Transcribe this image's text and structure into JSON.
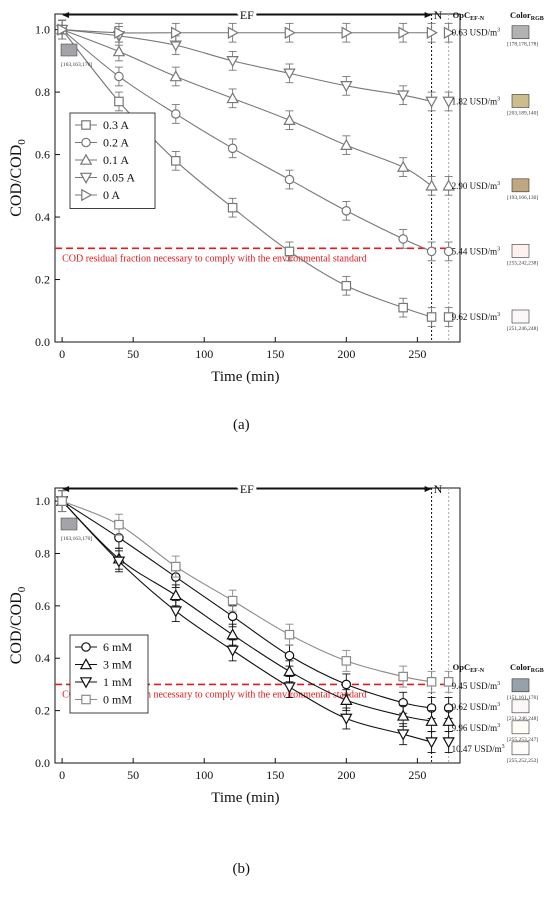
{
  "chart_data": [
    {
      "panel": "a",
      "type": "line",
      "caption": "(a)",
      "xlabel": "Time (min)",
      "ylabel": "COD/COD",
      "ylabel_sub": "0",
      "xlim": [
        -5,
        280
      ],
      "ylim": [
        0,
        1.05
      ],
      "xticks": [
        "0",
        "50",
        "100",
        "150",
        "200",
        "250"
      ],
      "yticks": [
        "0.0",
        "0.2",
        "0.4",
        "0.6",
        "0.8",
        "1.0"
      ],
      "x": [
        0,
        40,
        80,
        120,
        160,
        200,
        240,
        260,
        272
      ],
      "series": [
        {
          "name": "0.3 A",
          "marker": "square",
          "color": "#777777",
          "values": [
            1.0,
            0.77,
            0.58,
            0.43,
            0.29,
            0.18,
            0.11,
            0.08,
            0.08
          ]
        },
        {
          "name": "0.2 A",
          "marker": "circle",
          "color": "#777777",
          "values": [
            1.0,
            0.85,
            0.73,
            0.62,
            0.52,
            0.42,
            0.33,
            0.29,
            0.29
          ]
        },
        {
          "name": "0.1 A",
          "marker": "triangle-up",
          "color": "#777777",
          "values": [
            1.0,
            0.93,
            0.85,
            0.78,
            0.71,
            0.63,
            0.56,
            0.5,
            0.5
          ]
        },
        {
          "name": "0.05 A",
          "marker": "triangle-down",
          "color": "#777777",
          "values": [
            1.0,
            0.98,
            0.95,
            0.9,
            0.86,
            0.82,
            0.79,
            0.77,
            0.77
          ]
        },
        {
          "name": "0 A",
          "marker": "triangle-right",
          "color": "#777777",
          "values": [
            1.0,
            0.99,
            0.99,
            0.99,
            0.99,
            0.99,
            0.99,
            0.99,
            0.99
          ]
        }
      ],
      "error": 0.03,
      "threshold": {
        "y": 0.3,
        "text": "COD residual fraction necessary to comply with the environmental standard",
        "color": "#e41a1c"
      },
      "ef_label": "EF",
      "n_label": "N",
      "ef_end_x": 260,
      "n_line_x": 272,
      "color_header": "Color",
      "color_header_sub": "RGB",
      "opc_header": "OpC",
      "opc_header_sub": "EF-N",
      "start_swatch": {
        "rgb_text": "[163,163,170]",
        "color": "#a3a3aa"
      },
      "costs": [
        {
          "value": "0.63",
          "unit": "USD/m",
          "sup": "3",
          "rgb_text": "[178,178,178]",
          "color": "#b2b2b2",
          "y": 0.99
        },
        {
          "value": "1.82",
          "unit": "USD/m",
          "sup": "3",
          "rgb_text": "[203,189,140]",
          "color": "#cbbd8c",
          "y": 0.77
        },
        {
          "value": "2.90",
          "unit": "USD/m",
          "sup": "3",
          "rgb_text": "[193,166,130]",
          "color": "#c1a682",
          "y": 0.5
        },
        {
          "value": "5.44",
          "unit": "USD/m",
          "sup": "3",
          "rgb_text": "[255,242,238]",
          "color": "#fff2ee",
          "y": 0.29
        },
        {
          "value": "9.62",
          "unit": "USD/m",
          "sup": "3",
          "rgb_text": "[251,246,248]",
          "color": "#fbf6f8",
          "y": 0.08
        }
      ]
    },
    {
      "panel": "b",
      "type": "line",
      "caption": "(b)",
      "xlabel": "Time (min)",
      "ylabel": "COD/COD",
      "ylabel_sub": "0",
      "xlim": [
        -5,
        280
      ],
      "ylim": [
        0,
        1.05
      ],
      "xticks": [
        "0",
        "50",
        "100",
        "150",
        "200",
        "250"
      ],
      "yticks": [
        "0.0",
        "0.2",
        "0.4",
        "0.6",
        "0.8",
        "1.0"
      ],
      "x": [
        0,
        40,
        80,
        120,
        160,
        200,
        240,
        260,
        272
      ],
      "series": [
        {
          "name": "6 mM",
          "marker": "circle",
          "color": "#111111",
          "values": [
            1.0,
            0.86,
            0.71,
            0.56,
            0.41,
            0.3,
            0.23,
            0.21,
            0.21
          ]
        },
        {
          "name": "3 mM",
          "marker": "triangle-up",
          "color": "#111111",
          "values": [
            1.0,
            0.78,
            0.64,
            0.49,
            0.35,
            0.24,
            0.18,
            0.16,
            0.16
          ]
        },
        {
          "name": "1 mM",
          "marker": "triangle-down",
          "color": "#111111",
          "values": [
            1.0,
            0.77,
            0.58,
            0.43,
            0.29,
            0.17,
            0.11,
            0.08,
            0.08
          ]
        },
        {
          "name": "0 mM",
          "marker": "square",
          "color": "#8a8a8a",
          "values": [
            1.0,
            0.91,
            0.75,
            0.62,
            0.49,
            0.39,
            0.33,
            0.31,
            0.31
          ]
        }
      ],
      "error": 0.04,
      "threshold": {
        "y": 0.3,
        "text": "COD residual fraction necessary to comply with the environmental standard",
        "color": "#e41a1c"
      },
      "ef_label": "EF",
      "n_label": "N",
      "ef_end_x": 260,
      "n_line_x": 272,
      "color_header": "Color",
      "color_header_sub": "RGB",
      "opc_header": "OpC",
      "opc_header_sub": "EF-N",
      "start_swatch": {
        "rgb_text": "[163,163,170]",
        "color": "#a3a3aa"
      },
      "costs": [
        {
          "value": "9.45",
          "unit": "USD/m",
          "sup": "3",
          "rgb_text": "[151,161,170]",
          "color": "#97a1aa",
          "y": 0.31
        },
        {
          "value": "9.62",
          "unit": "USD/m",
          "sup": "3",
          "rgb_text": "[251,246,248]",
          "color": "#fbf6f8",
          "y": 0.21
        },
        {
          "value": "9.96",
          "unit": "USD/m",
          "sup": "3",
          "rgb_text": "[255,253,247]",
          "color": "#fffdf7",
          "y": 0.16
        },
        {
          "value": "10.47",
          "unit": "USD/m",
          "sup": "3",
          "rgb_text": "[255,252,252]",
          "color": "#fffcfc",
          "y": 0.08
        }
      ]
    }
  ]
}
